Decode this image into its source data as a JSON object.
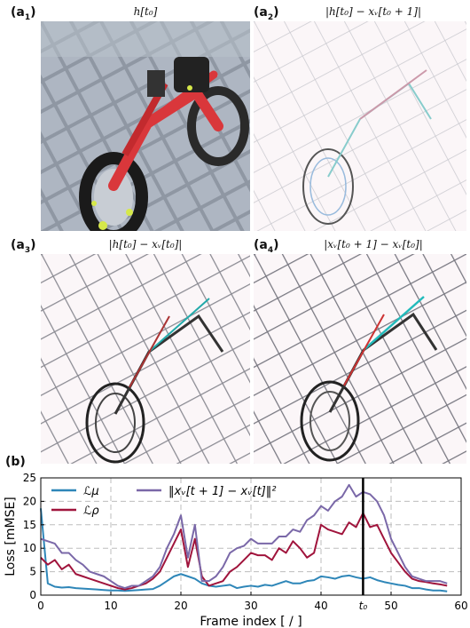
{
  "figure": {
    "panels": [
      {
        "label": "a",
        "sub": "1",
        "title": "h[t₀]",
        "kind": "photo"
      },
      {
        "label": "a",
        "sub": "2",
        "title": "|h[t₀] − xᵥ[t₀ + 1]|",
        "kind": "diff"
      },
      {
        "label": "a",
        "sub": "3",
        "title": "|h[t₀] − xᵥ[t₀]|",
        "kind": "diff"
      },
      {
        "label": "a",
        "sub": "4",
        "title": "|xᵥ[t₀ + 1] − xᵥ[t₀]|",
        "kind": "diff"
      }
    ],
    "b_label": "(b)",
    "colors": {
      "mu": "#2e86b8",
      "rho": "#a0143c",
      "diff": "#7a68a8",
      "marker": "#000000"
    }
  },
  "chart_data": {
    "type": "line",
    "xlabel": "Frame index [ / ]",
    "ylabel": "Loss [mMSE]",
    "xlim": [
      0,
      60
    ],
    "ylim": [
      0,
      25
    ],
    "xticks": [
      "0",
      "10",
      "20",
      "30",
      "40",
      "t₀",
      "50",
      "60"
    ],
    "yticks": [
      "0",
      "5",
      "10",
      "15",
      "20",
      "25"
    ],
    "vline_x": 46,
    "grid": true,
    "legend_position": "top-left",
    "x": [
      0,
      1,
      2,
      3,
      4,
      5,
      6,
      7,
      8,
      9,
      10,
      11,
      12,
      13,
      14,
      15,
      16,
      17,
      18,
      19,
      20,
      21,
      22,
      23,
      24,
      25,
      26,
      27,
      28,
      29,
      30,
      31,
      32,
      33,
      34,
      35,
      36,
      37,
      38,
      39,
      40,
      41,
      42,
      43,
      44,
      45,
      46,
      47,
      48,
      49,
      50,
      51,
      52,
      53,
      54,
      55,
      56,
      57,
      58
    ],
    "series": [
      {
        "name": "ℒμ",
        "key": "mu",
        "values": [
          18.5,
          2.5,
          1.8,
          1.6,
          1.7,
          1.5,
          1.4,
          1.3,
          1.2,
          1.1,
          1.0,
          1.0,
          0.9,
          1.0,
          1.1,
          1.2,
          1.3,
          2.0,
          3.0,
          4.0,
          4.5,
          4.0,
          3.5,
          2.5,
          2.0,
          1.8,
          2.0,
          2.2,
          1.5,
          1.8,
          2.0,
          1.8,
          2.2,
          2.0,
          2.5,
          3.0,
          2.5,
          2.5,
          3.0,
          3.2,
          4.0,
          3.8,
          3.5,
          4.0,
          4.2,
          3.8,
          3.5,
          3.8,
          3.2,
          2.8,
          2.5,
          2.2,
          2.0,
          1.5,
          1.5,
          1.2,
          1.0,
          1.0,
          0.8
        ]
      },
      {
        "name": "ℒρ",
        "key": "rho",
        "values": [
          8.0,
          6.5,
          7.5,
          5.5,
          6.5,
          4.5,
          4.0,
          3.5,
          3.0,
          2.5,
          2.0,
          1.5,
          1.2,
          1.5,
          2.0,
          2.5,
          3.5,
          5.0,
          8.0,
          11.0,
          14.0,
          6.0,
          12.0,
          4.0,
          2.0,
          2.5,
          3.0,
          5.0,
          6.0,
          7.5,
          9.0,
          8.5,
          8.5,
          7.5,
          10.0,
          9.0,
          11.5,
          10.0,
          8.0,
          9.0,
          15.0,
          14.0,
          13.5,
          13.0,
          15.5,
          14.5,
          17.5,
          14.5,
          15.0,
          12.0,
          9.0,
          7.0,
          5.0,
          3.5,
          3.0,
          2.8,
          2.5,
          2.3,
          2.0
        ]
      },
      {
        "name": "‖xᵥ[t + 1] − xᵥ[t]‖²",
        "key": "diff",
        "values": [
          12.0,
          11.5,
          11.0,
          9.0,
          9.0,
          7.5,
          6.5,
          5.0,
          4.5,
          4.0,
          3.0,
          2.0,
          1.5,
          2.0,
          2.0,
          3.0,
          4.0,
          6.0,
          10.0,
          13.0,
          17.0,
          8.0,
          15.0,
          3.0,
          3.0,
          4.0,
          6.0,
          9.0,
          10.0,
          10.5,
          12.0,
          11.0,
          11.0,
          11.0,
          12.5,
          12.5,
          14.0,
          13.5,
          16.0,
          17.0,
          19.0,
          18.0,
          20.0,
          21.0,
          23.5,
          21.0,
          22.0,
          21.5,
          20.0,
          17.0,
          12.0,
          9.0,
          6.0,
          4.0,
          3.5,
          3.0,
          3.0,
          3.0,
          2.5
        ]
      }
    ]
  }
}
